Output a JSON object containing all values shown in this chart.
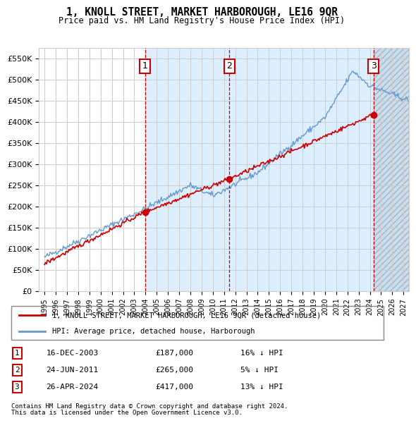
{
  "title": "1, KNOLL STREET, MARKET HARBOROUGH, LE16 9QR",
  "subtitle": "Price paid vs. HM Land Registry's House Price Index (HPI)",
  "legend_line1": "1, KNOLL STREET, MARKET HARBOROUGH, LE16 9QR (detached house)",
  "legend_line2": "HPI: Average price, detached house, Harborough",
  "transactions": [
    {
      "num": 1,
      "date": "16-DEC-2003",
      "price": 187000,
      "pct": "16%",
      "dir": "↓",
      "year": 2003.96
    },
    {
      "num": 2,
      "date": "24-JUN-2011",
      "price": 265000,
      "pct": "5%",
      "dir": "↓",
      "year": 2011.48
    },
    {
      "num": 3,
      "date": "26-APR-2024",
      "price": 417000,
      "pct": "13%",
      "dir": "↓",
      "year": 2024.32
    }
  ],
  "footnote1": "Contains HM Land Registry data © Crown copyright and database right 2024.",
  "footnote2": "This data is licensed under the Open Government Licence v3.0.",
  "ylim": [
    0,
    575000
  ],
  "yticks": [
    0,
    50000,
    100000,
    150000,
    200000,
    250000,
    300000,
    350000,
    400000,
    450000,
    500000,
    550000
  ],
  "xlim_start": 1994.5,
  "xlim_end": 2027.5,
  "hatch_end": 2027.5,
  "shade_color": "#ddeeff",
  "hatch_color": "#ccdded",
  "red_color": "#cc0000",
  "blue_color": "#6699cc",
  "grid_color": "#cccccc"
}
